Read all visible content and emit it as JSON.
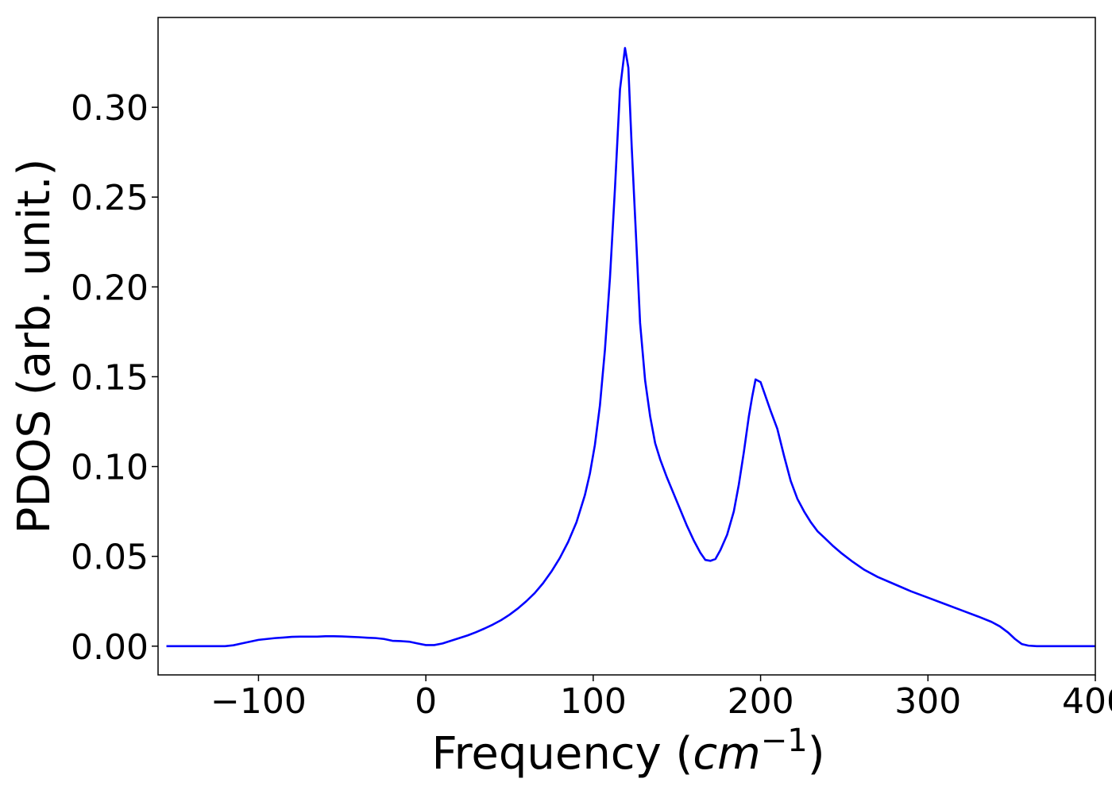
{
  "chart_data": {
    "type": "line",
    "title": "",
    "xlabel_text": "Frequency (",
    "xlabel_math": "cm",
    "xlabel_sup": "−1",
    "xlabel_close": ")",
    "ylabel": "PDOS (arb. unit.)",
    "xlim": [
      -160,
      400
    ],
    "ylim": [
      -0.016,
      0.35
    ],
    "xticks": [
      -100,
      0,
      100,
      200,
      300,
      400
    ],
    "xtick_labels": [
      "−100",
      "0",
      "100",
      "200",
      "300",
      "400"
    ],
    "yticks": [
      0.0,
      0.05,
      0.1,
      0.15,
      0.2,
      0.25,
      0.3
    ],
    "ytick_labels": [
      "0.00",
      "0.05",
      "0.10",
      "0.15",
      "0.20",
      "0.25",
      "0.30"
    ],
    "grid": false,
    "legend": "none",
    "series": [
      {
        "color": "#0000ff",
        "points": [
          [
            -155,
            0.0
          ],
          [
            -120,
            0.0
          ],
          [
            -115,
            0.0005
          ],
          [
            -110,
            0.0015
          ],
          [
            -105,
            0.0025
          ],
          [
            -100,
            0.0035
          ],
          [
            -95,
            0.004
          ],
          [
            -90,
            0.0045
          ],
          [
            -85,
            0.0048
          ],
          [
            -80,
            0.0052
          ],
          [
            -75,
            0.0053
          ],
          [
            -70,
            0.0053
          ],
          [
            -65,
            0.0053
          ],
          [
            -60,
            0.0055
          ],
          [
            -55,
            0.0055
          ],
          [
            -50,
            0.0054
          ],
          [
            -45,
            0.0052
          ],
          [
            -40,
            0.005
          ],
          [
            -35,
            0.0047
          ],
          [
            -30,
            0.0045
          ],
          [
            -25,
            0.004
          ],
          [
            -20,
            0.003
          ],
          [
            -15,
            0.0028
          ],
          [
            -10,
            0.0025
          ],
          [
            -5,
            0.0015
          ],
          [
            0,
            0.0006
          ],
          [
            5,
            0.0006
          ],
          [
            10,
            0.0015
          ],
          [
            15,
            0.003
          ],
          [
            20,
            0.0045
          ],
          [
            25,
            0.006
          ],
          [
            30,
            0.0078
          ],
          [
            35,
            0.0098
          ],
          [
            40,
            0.012
          ],
          [
            45,
            0.0145
          ],
          [
            50,
            0.0175
          ],
          [
            55,
            0.021
          ],
          [
            60,
            0.025
          ],
          [
            65,
            0.0295
          ],
          [
            70,
            0.035
          ],
          [
            75,
            0.0415
          ],
          [
            80,
            0.049
          ],
          [
            85,
            0.058
          ],
          [
            90,
            0.069
          ],
          [
            95,
            0.084
          ],
          [
            98,
            0.096
          ],
          [
            101,
            0.112
          ],
          [
            104,
            0.134
          ],
          [
            107,
            0.165
          ],
          [
            110,
            0.205
          ],
          [
            113,
            0.255
          ],
          [
            116,
            0.31
          ],
          [
            119,
            0.333
          ],
          [
            121,
            0.322
          ],
          [
            123,
            0.278
          ],
          [
            126,
            0.22
          ],
          [
            128,
            0.18
          ],
          [
            131,
            0.148
          ],
          [
            134,
            0.128
          ],
          [
            137,
            0.113
          ],
          [
            140,
            0.104
          ],
          [
            144,
            0.094
          ],
          [
            148,
            0.085
          ],
          [
            152,
            0.076
          ],
          [
            156,
            0.067
          ],
          [
            160,
            0.059
          ],
          [
            164,
            0.052
          ],
          [
            167,
            0.048
          ],
          [
            170,
            0.0475
          ],
          [
            173,
            0.0485
          ],
          [
            176,
            0.0535
          ],
          [
            180,
            0.062
          ],
          [
            184,
            0.075
          ],
          [
            187,
            0.09
          ],
          [
            190,
            0.108
          ],
          [
            193,
            0.128
          ],
          [
            195,
            0.139
          ],
          [
            197,
            0.1485
          ],
          [
            200,
            0.147
          ],
          [
            203,
            0.139
          ],
          [
            206,
            0.131
          ],
          [
            210,
            0.121
          ],
          [
            214,
            0.106
          ],
          [
            218,
            0.092
          ],
          [
            222,
            0.082
          ],
          [
            226,
            0.075
          ],
          [
            230,
            0.069
          ],
          [
            234,
            0.064
          ],
          [
            238,
            0.0605
          ],
          [
            243,
            0.056
          ],
          [
            248,
            0.052
          ],
          [
            255,
            0.047
          ],
          [
            262,
            0.0425
          ],
          [
            270,
            0.0385
          ],
          [
            280,
            0.0345
          ],
          [
            290,
            0.0305
          ],
          [
            300,
            0.027
          ],
          [
            310,
            0.0235
          ],
          [
            320,
            0.02
          ],
          [
            330,
            0.0165
          ],
          [
            338,
            0.0135
          ],
          [
            343,
            0.011
          ],
          [
            348,
            0.0075
          ],
          [
            352,
            0.004
          ],
          [
            356,
            0.0012
          ],
          [
            360,
            0.0003
          ],
          [
            365,
            0.0
          ],
          [
            400,
            0.0
          ]
        ]
      }
    ]
  }
}
